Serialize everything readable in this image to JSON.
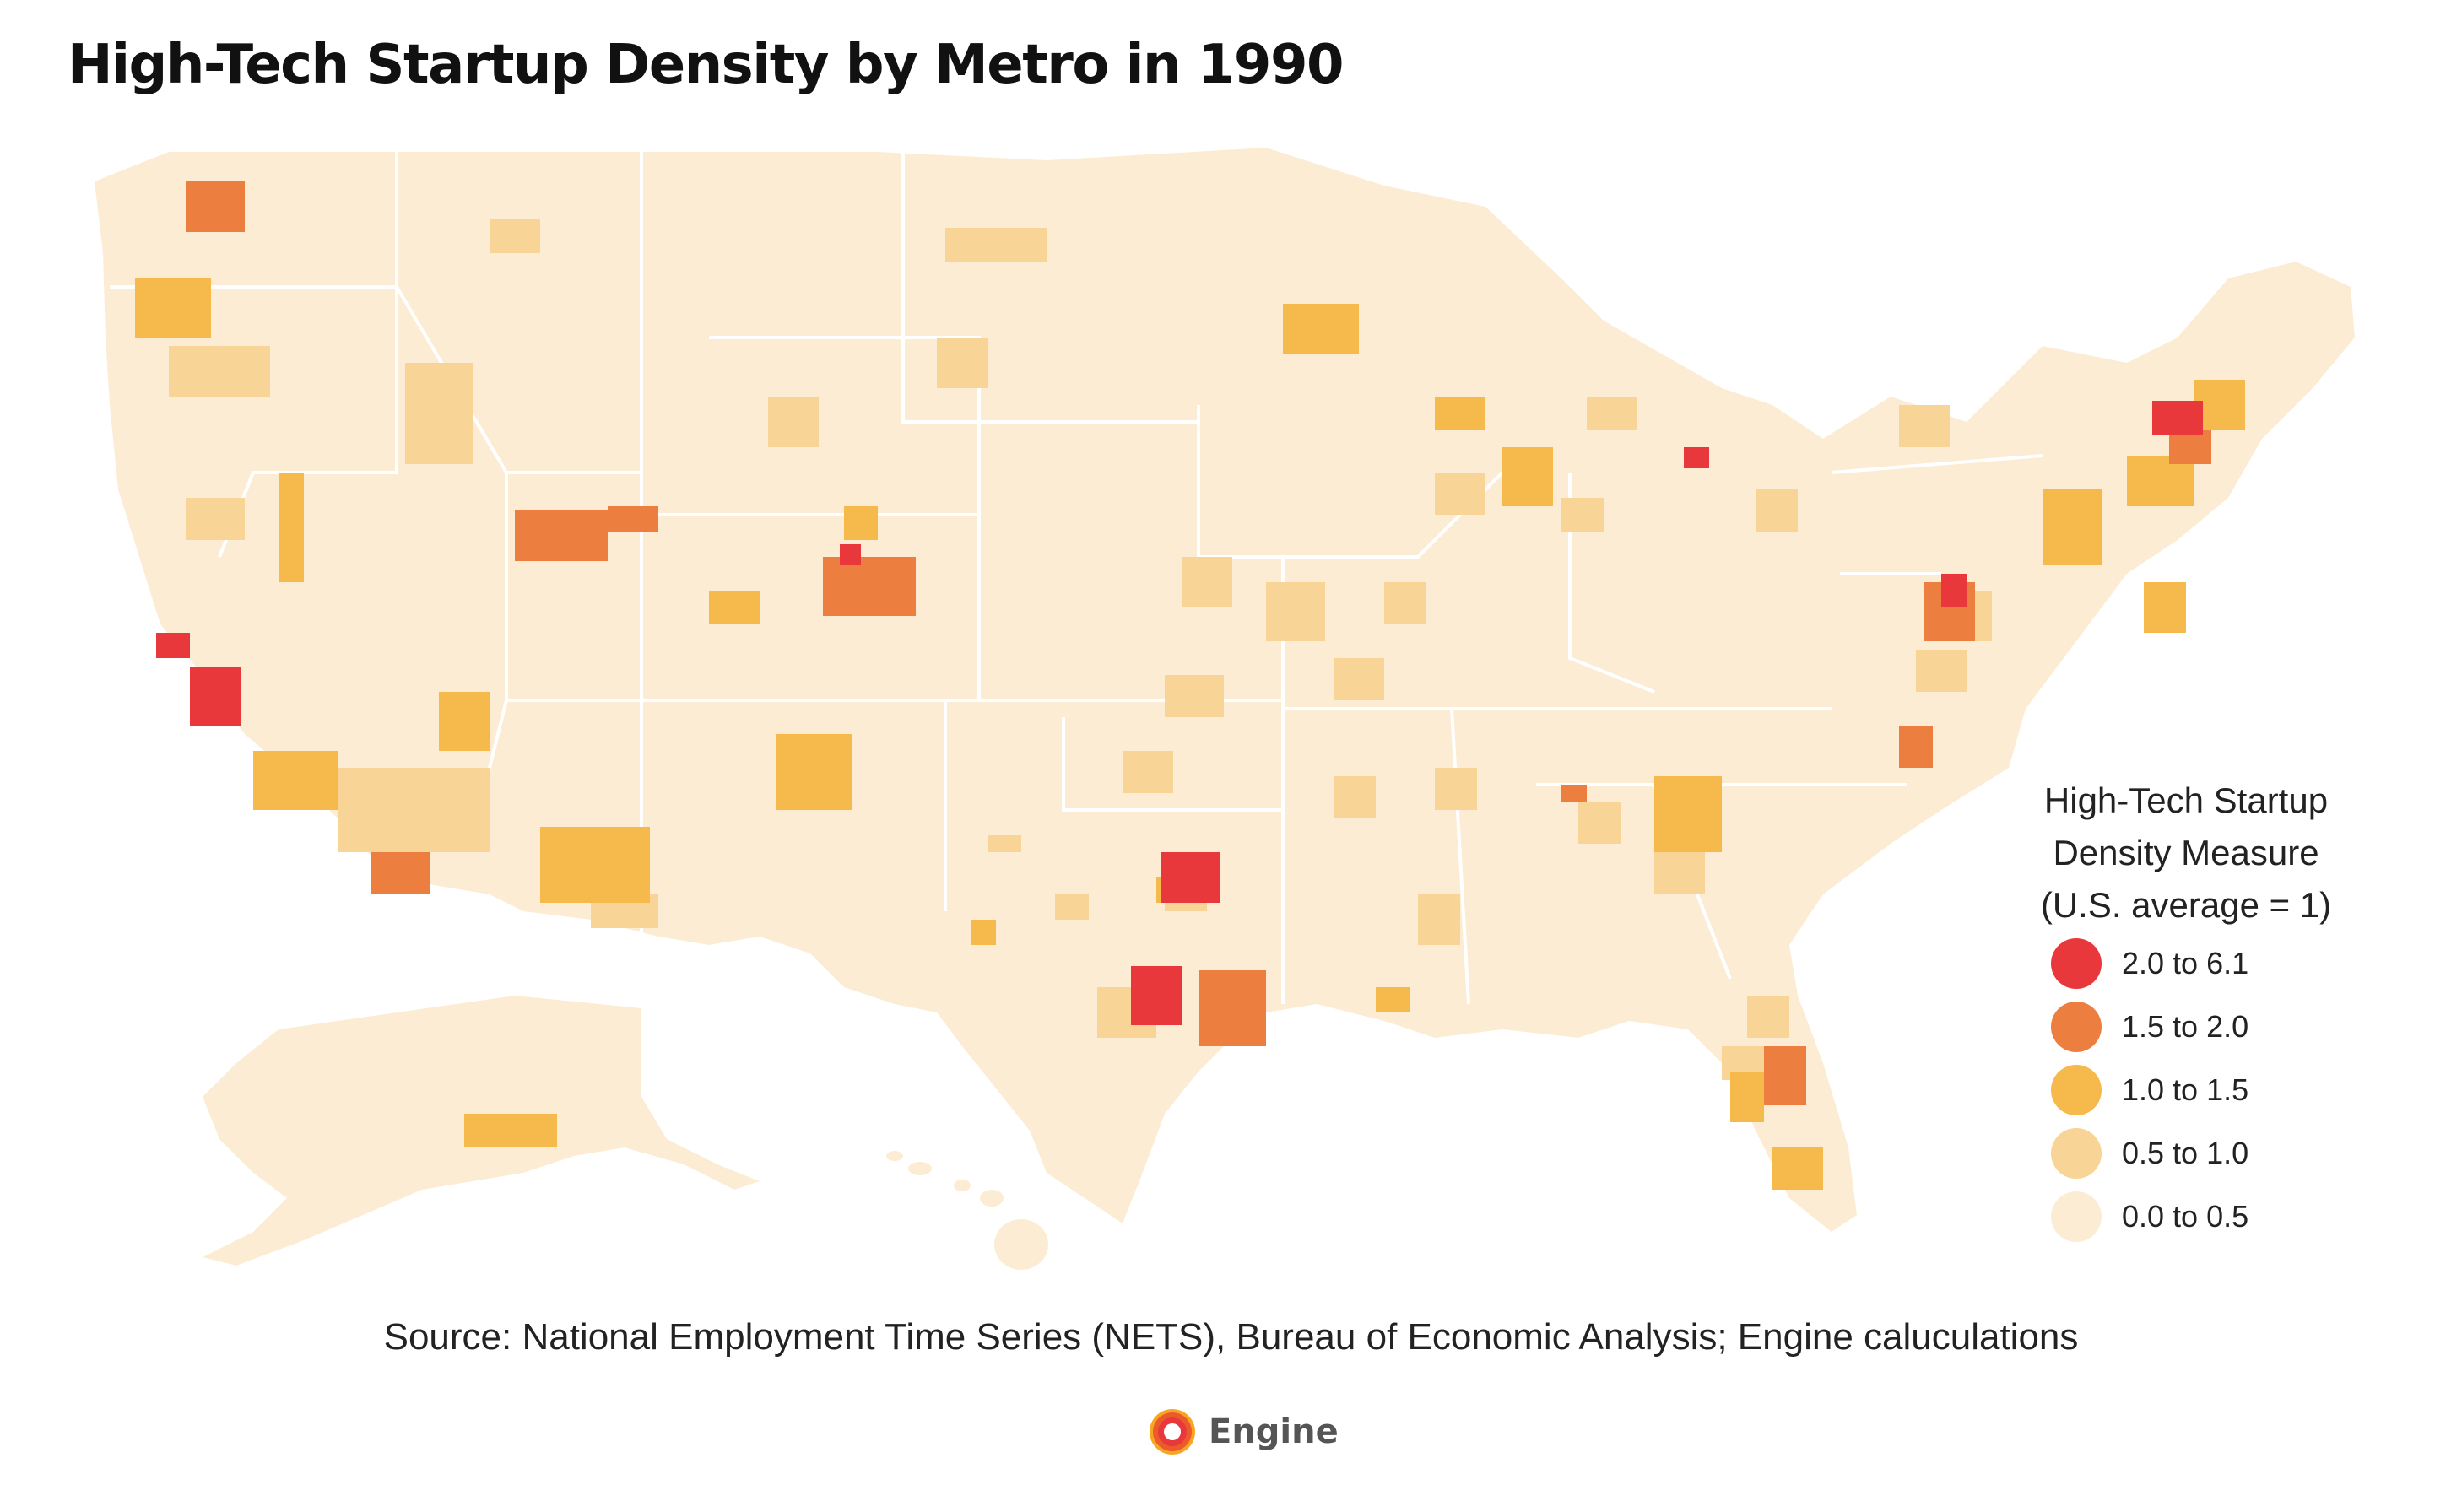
{
  "title": "High-Tech Startup Density by Metro in 1990",
  "legend": {
    "title_lines": [
      "High-Tech Startup",
      "Density Measure",
      "(U.S. average = 1)"
    ],
    "items": [
      {
        "label": "2.0 to 6.1",
        "color": "#e8383b"
      },
      {
        "label": "1.5 to 2.0",
        "color": "#ec7f40"
      },
      {
        "label": "1.0 to 1.5",
        "color": "#f6b94b"
      },
      {
        "label": "0.5 to 1.0",
        "color": "#f8d496"
      },
      {
        "label": "0.0 to 0.5",
        "color": "#fdecd4"
      }
    ]
  },
  "source": "Source: National Employment Time Series (NETS), Bureau of Economic Analysis; Engine caluculations",
  "logo": {
    "text": "Engine",
    "icon": "engine-logo-icon"
  },
  "map": {
    "base_color": "#fdecd4",
    "border_color": "#ffffff"
  }
}
